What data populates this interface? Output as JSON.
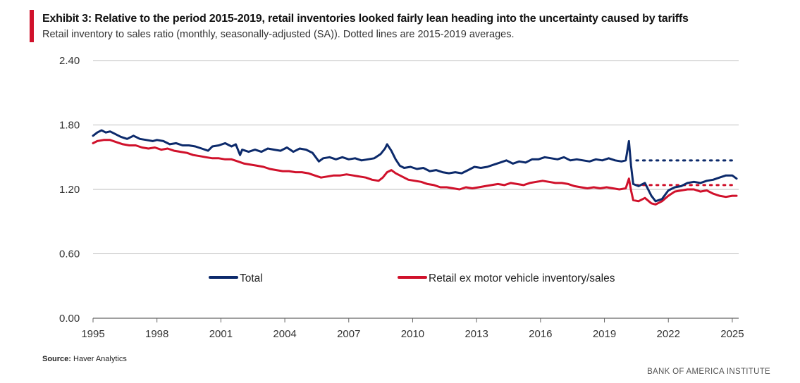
{
  "header": {
    "title": "Exhibit 3: Relative to the period 2015-2019, retail inventories looked fairly lean heading into the uncertainty caused by tariffs",
    "subtitle": "Retail inventory to sales ratio (monthly, seasonally-adjusted (SA)). Dotted lines are 2015-2019 averages."
  },
  "footer": {
    "source_label": "Source:",
    "source_text": " Haver Analytics",
    "brand": "BANK OF AMERICA INSTITUTE"
  },
  "colors": {
    "total": "#0c2a6b",
    "retail_ex": "#d0112b",
    "grid": "#bdbdbd",
    "accent": "#d0112b"
  },
  "chart_data": {
    "type": "line",
    "title": "Retail inventory to sales ratio",
    "xlabel": "",
    "ylabel": "",
    "xlim": [
      1995,
      2025.3
    ],
    "ylim": [
      0,
      2.4
    ],
    "yticks": [
      0.0,
      0.6,
      1.2,
      1.8,
      2.4
    ],
    "ytick_labels": [
      "0.00",
      "0.60",
      "1.20",
      "1.80",
      "2.40"
    ],
    "xticks": [
      1995,
      1998,
      2001,
      2004,
      2007,
      2010,
      2013,
      2016,
      2019,
      2022,
      2025
    ],
    "xtick_labels": [
      "1995",
      "1998",
      "2001",
      "2004",
      "2007",
      "2010",
      "2013",
      "2016",
      "2019",
      "2022",
      "2025"
    ],
    "grid": true,
    "legend": [
      "Total",
      "Retail ex motor vehicle inventory/sales"
    ],
    "series": [
      {
        "name": "Total",
        "color": "#0c2a6b",
        "points": [
          [
            1995.0,
            1.7
          ],
          [
            1995.2,
            1.73
          ],
          [
            1995.4,
            1.75
          ],
          [
            1995.6,
            1.73
          ],
          [
            1995.8,
            1.74
          ],
          [
            1996.0,
            1.72
          ],
          [
            1996.3,
            1.69
          ],
          [
            1996.6,
            1.67
          ],
          [
            1996.9,
            1.7
          ],
          [
            1997.2,
            1.67
          ],
          [
            1997.5,
            1.66
          ],
          [
            1997.8,
            1.65
          ],
          [
            1998.0,
            1.66
          ],
          [
            1998.3,
            1.65
          ],
          [
            1998.6,
            1.62
          ],
          [
            1998.9,
            1.63
          ],
          [
            1999.2,
            1.61
          ],
          [
            1999.5,
            1.61
          ],
          [
            1999.8,
            1.6
          ],
          [
            2000.1,
            1.58
          ],
          [
            2000.4,
            1.56
          ],
          [
            2000.6,
            1.6
          ],
          [
            2000.9,
            1.61
          ],
          [
            2001.2,
            1.63
          ],
          [
            2001.5,
            1.6
          ],
          [
            2001.7,
            1.62
          ],
          [
            2001.9,
            1.52
          ],
          [
            2002.0,
            1.57
          ],
          [
            2002.3,
            1.55
          ],
          [
            2002.6,
            1.57
          ],
          [
            2002.9,
            1.55
          ],
          [
            2003.2,
            1.58
          ],
          [
            2003.5,
            1.57
          ],
          [
            2003.8,
            1.56
          ],
          [
            2004.1,
            1.59
          ],
          [
            2004.4,
            1.55
          ],
          [
            2004.7,
            1.58
          ],
          [
            2005.0,
            1.57
          ],
          [
            2005.3,
            1.54
          ],
          [
            2005.6,
            1.46
          ],
          [
            2005.8,
            1.49
          ],
          [
            2006.1,
            1.5
          ],
          [
            2006.4,
            1.48
          ],
          [
            2006.7,
            1.5
          ],
          [
            2007.0,
            1.48
          ],
          [
            2007.3,
            1.49
          ],
          [
            2007.6,
            1.47
          ],
          [
            2007.9,
            1.48
          ],
          [
            2008.2,
            1.49
          ],
          [
            2008.5,
            1.53
          ],
          [
            2008.7,
            1.58
          ],
          [
            2008.8,
            1.62
          ],
          [
            2009.0,
            1.56
          ],
          [
            2009.2,
            1.48
          ],
          [
            2009.4,
            1.42
          ],
          [
            2009.6,
            1.4
          ],
          [
            2009.9,
            1.41
          ],
          [
            2010.2,
            1.39
          ],
          [
            2010.5,
            1.4
          ],
          [
            2010.8,
            1.37
          ],
          [
            2011.1,
            1.38
          ],
          [
            2011.4,
            1.36
          ],
          [
            2011.7,
            1.35
          ],
          [
            2012.0,
            1.36
          ],
          [
            2012.3,
            1.35
          ],
          [
            2012.6,
            1.38
          ],
          [
            2012.9,
            1.41
          ],
          [
            2013.2,
            1.4
          ],
          [
            2013.5,
            1.41
          ],
          [
            2013.8,
            1.43
          ],
          [
            2014.1,
            1.45
          ],
          [
            2014.4,
            1.47
          ],
          [
            2014.7,
            1.44
          ],
          [
            2015.0,
            1.46
          ],
          [
            2015.3,
            1.45
          ],
          [
            2015.6,
            1.48
          ],
          [
            2015.9,
            1.48
          ],
          [
            2016.2,
            1.5
          ],
          [
            2016.5,
            1.49
          ],
          [
            2016.8,
            1.48
          ],
          [
            2017.1,
            1.5
          ],
          [
            2017.4,
            1.47
          ],
          [
            2017.7,
            1.48
          ],
          [
            2018.0,
            1.47
          ],
          [
            2018.3,
            1.46
          ],
          [
            2018.6,
            1.48
          ],
          [
            2018.9,
            1.47
          ],
          [
            2019.2,
            1.49
          ],
          [
            2019.5,
            1.47
          ],
          [
            2019.8,
            1.46
          ],
          [
            2020.0,
            1.47
          ],
          [
            2020.15,
            1.65
          ],
          [
            2020.25,
            1.42
          ],
          [
            2020.35,
            1.25
          ],
          [
            2020.6,
            1.23
          ],
          [
            2020.9,
            1.26
          ],
          [
            2021.2,
            1.14
          ],
          [
            2021.4,
            1.09
          ],
          [
            2021.7,
            1.11
          ],
          [
            2022.0,
            1.19
          ],
          [
            2022.3,
            1.22
          ],
          [
            2022.6,
            1.23
          ],
          [
            2022.9,
            1.26
          ],
          [
            2023.2,
            1.27
          ],
          [
            2023.5,
            1.26
          ],
          [
            2023.8,
            1.28
          ],
          [
            2024.1,
            1.29
          ],
          [
            2024.4,
            1.31
          ],
          [
            2024.7,
            1.33
          ],
          [
            2025.0,
            1.33
          ],
          [
            2025.2,
            1.3
          ]
        ]
      },
      {
        "name": "Retail ex motor vehicle inventory/sales",
        "color": "#d0112b",
        "points": [
          [
            1995.0,
            1.63
          ],
          [
            1995.2,
            1.65
          ],
          [
            1995.5,
            1.66
          ],
          [
            1995.8,
            1.66
          ],
          [
            1996.1,
            1.64
          ],
          [
            1996.4,
            1.62
          ],
          [
            1996.7,
            1.61
          ],
          [
            1997.0,
            1.61
          ],
          [
            1997.3,
            1.59
          ],
          [
            1997.6,
            1.58
          ],
          [
            1997.9,
            1.59
          ],
          [
            1998.2,
            1.57
          ],
          [
            1998.5,
            1.58
          ],
          [
            1998.8,
            1.56
          ],
          [
            1999.1,
            1.55
          ],
          [
            1999.4,
            1.54
          ],
          [
            1999.7,
            1.52
          ],
          [
            2000.0,
            1.51
          ],
          [
            2000.3,
            1.5
          ],
          [
            2000.6,
            1.49
          ],
          [
            2000.9,
            1.49
          ],
          [
            2001.2,
            1.48
          ],
          [
            2001.5,
            1.48
          ],
          [
            2001.8,
            1.46
          ],
          [
            2002.1,
            1.44
          ],
          [
            2002.4,
            1.43
          ],
          [
            2002.7,
            1.42
          ],
          [
            2003.0,
            1.41
          ],
          [
            2003.3,
            1.39
          ],
          [
            2003.6,
            1.38
          ],
          [
            2003.9,
            1.37
          ],
          [
            2004.2,
            1.37
          ],
          [
            2004.5,
            1.36
          ],
          [
            2004.8,
            1.36
          ],
          [
            2005.1,
            1.35
          ],
          [
            2005.4,
            1.33
          ],
          [
            2005.7,
            1.31
          ],
          [
            2006.0,
            1.32
          ],
          [
            2006.3,
            1.33
          ],
          [
            2006.6,
            1.33
          ],
          [
            2006.9,
            1.34
          ],
          [
            2007.2,
            1.33
          ],
          [
            2007.5,
            1.32
          ],
          [
            2007.8,
            1.31
          ],
          [
            2008.1,
            1.29
          ],
          [
            2008.4,
            1.28
          ],
          [
            2008.6,
            1.31
          ],
          [
            2008.8,
            1.36
          ],
          [
            2009.0,
            1.38
          ],
          [
            2009.2,
            1.35
          ],
          [
            2009.5,
            1.32
          ],
          [
            2009.8,
            1.29
          ],
          [
            2010.1,
            1.28
          ],
          [
            2010.4,
            1.27
          ],
          [
            2010.7,
            1.25
          ],
          [
            2011.0,
            1.24
          ],
          [
            2011.3,
            1.22
          ],
          [
            2011.6,
            1.22
          ],
          [
            2011.9,
            1.21
          ],
          [
            2012.2,
            1.2
          ],
          [
            2012.5,
            1.22
          ],
          [
            2012.8,
            1.21
          ],
          [
            2013.1,
            1.22
          ],
          [
            2013.4,
            1.23
          ],
          [
            2013.7,
            1.24
          ],
          [
            2014.0,
            1.25
          ],
          [
            2014.3,
            1.24
          ],
          [
            2014.6,
            1.26
          ],
          [
            2014.9,
            1.25
          ],
          [
            2015.2,
            1.24
          ],
          [
            2015.5,
            1.26
          ],
          [
            2015.8,
            1.27
          ],
          [
            2016.1,
            1.28
          ],
          [
            2016.4,
            1.27
          ],
          [
            2016.7,
            1.26
          ],
          [
            2017.0,
            1.26
          ],
          [
            2017.3,
            1.25
          ],
          [
            2017.6,
            1.23
          ],
          [
            2017.9,
            1.22
          ],
          [
            2018.2,
            1.21
          ],
          [
            2018.5,
            1.22
          ],
          [
            2018.8,
            1.21
          ],
          [
            2019.1,
            1.22
          ],
          [
            2019.4,
            1.21
          ],
          [
            2019.7,
            1.2
          ],
          [
            2020.0,
            1.21
          ],
          [
            2020.15,
            1.3
          ],
          [
            2020.25,
            1.19
          ],
          [
            2020.35,
            1.1
          ],
          [
            2020.6,
            1.09
          ],
          [
            2020.9,
            1.12
          ],
          [
            2021.2,
            1.07
          ],
          [
            2021.4,
            1.06
          ],
          [
            2021.7,
            1.09
          ],
          [
            2022.0,
            1.14
          ],
          [
            2022.3,
            1.18
          ],
          [
            2022.6,
            1.19
          ],
          [
            2022.9,
            1.2
          ],
          [
            2023.2,
            1.2
          ],
          [
            2023.5,
            1.18
          ],
          [
            2023.8,
            1.19
          ],
          [
            2024.1,
            1.16
          ],
          [
            2024.4,
            1.14
          ],
          [
            2024.7,
            1.13
          ],
          [
            2025.0,
            1.14
          ],
          [
            2025.2,
            1.14
          ]
        ]
      }
    ],
    "averages_2015_2019": [
      {
        "name": "Total 2015-2019 average",
        "color": "#0c2a6b",
        "value": 1.47,
        "x_start": 2020.5,
        "x_end": 2025.2
      },
      {
        "name": "Retail ex 2015-2019 average",
        "color": "#d0112b",
        "value": 1.24,
        "x_start": 2020.5,
        "x_end": 2025.2
      }
    ]
  }
}
